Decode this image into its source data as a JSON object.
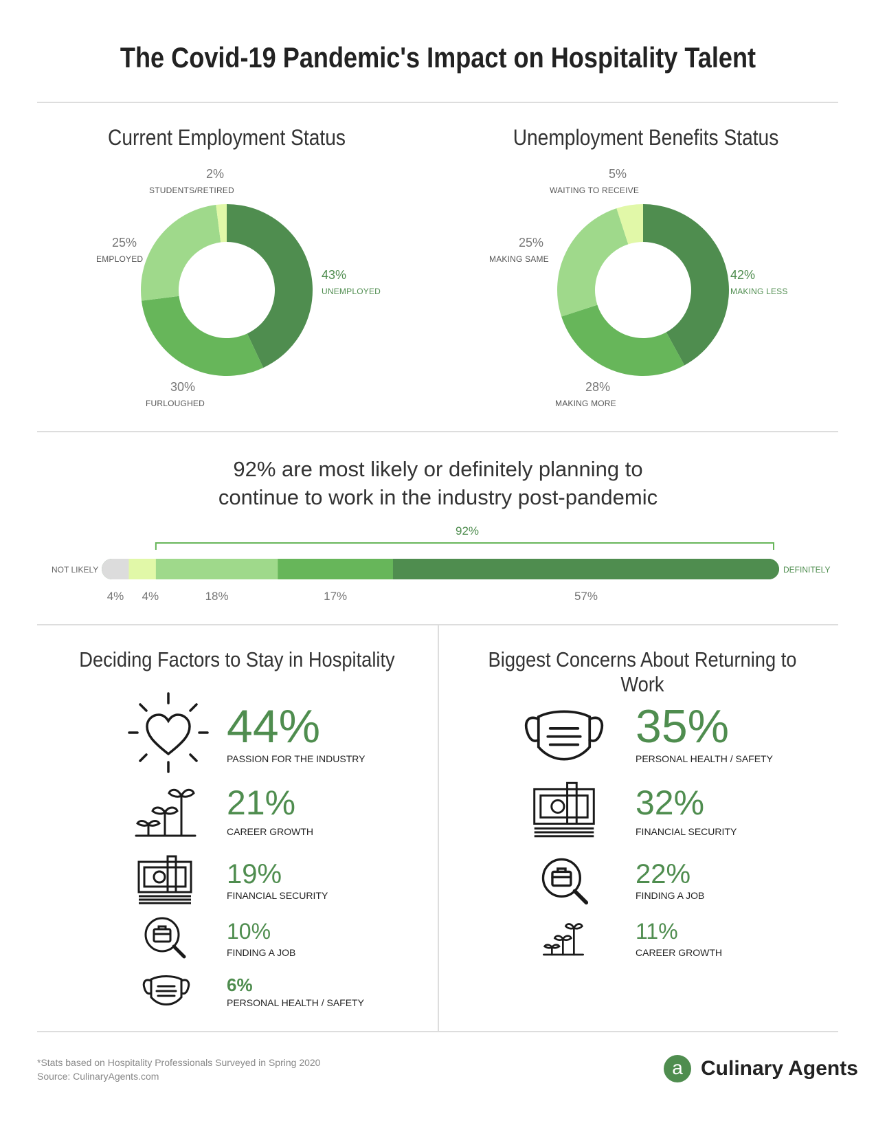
{
  "title": "The Covid-19 Pandemic's Impact on Hospitality Talent",
  "colors": {
    "dark": "#4f8d4f",
    "medium": "#67b65a",
    "light": "#9fd98b",
    "pale": "#e1f8a8",
    "gray": "#dcdcdc"
  },
  "employment": {
    "title": "Current Employment Status",
    "slices": [
      {
        "pct": "43%",
        "label": "UNEMPLOYED"
      },
      {
        "pct": "30%",
        "label": "FURLOUGHED"
      },
      {
        "pct": "25%",
        "label": "EMPLOYED"
      },
      {
        "pct": "2%",
        "label": "STUDENTS/RETIRED"
      }
    ]
  },
  "benefits": {
    "title": "Unemployment Benefits Status",
    "slices": [
      {
        "pct": "42%",
        "label": "MAKING LESS"
      },
      {
        "pct": "28%",
        "label": "MAKING MORE"
      },
      {
        "pct": "25%",
        "label": "MAKING SAME"
      },
      {
        "pct": "5%",
        "label": "WAITING TO RECEIVE"
      }
    ]
  },
  "plans": {
    "headline_1": "92% are most likely or definitely planning to",
    "headline_2": "continue to work in the industry post-pandemic",
    "bracket_label": "92%",
    "left_label": "NOT LIKELY",
    "right_label": "DEFINITELY",
    "segments": [
      {
        "pct": "4%"
      },
      {
        "pct": "4%"
      },
      {
        "pct": "18%"
      },
      {
        "pct": "17%"
      },
      {
        "pct": "57%"
      }
    ]
  },
  "deciding": {
    "title": "Deciding Factors to Stay in Hospitality",
    "items": [
      {
        "pct": "44%",
        "label": "PASSION FOR THE INDUSTRY",
        "icon": "heart-shine-icon"
      },
      {
        "pct": "21%",
        "label": "CAREER GROWTH",
        "icon": "sprouts-icon"
      },
      {
        "pct": "19%",
        "label": "FINANCIAL SECURITY",
        "icon": "money-stack-icon"
      },
      {
        "pct": "10%",
        "label": "FINDING A JOB",
        "icon": "job-search-icon"
      },
      {
        "pct": "6%",
        "label": "PERSONAL HEALTH / SAFETY",
        "icon": "face-mask-icon"
      }
    ]
  },
  "concerns": {
    "title": "Biggest Concerns About Returning to Work",
    "items": [
      {
        "pct": "35%",
        "label": "PERSONAL HEALTH / SAFETY",
        "icon": "face-mask-icon"
      },
      {
        "pct": "32%",
        "label": "FINANCIAL SECURITY",
        "icon": "money-stack-icon"
      },
      {
        "pct": "22%",
        "label": "FINDING A JOB",
        "icon": "job-search-icon"
      },
      {
        "pct": "11%",
        "label": "CAREER GROWTH",
        "icon": "sprouts-icon"
      }
    ]
  },
  "footer": {
    "note": "*Stats based on Hospitality Professionals Surveyed in Spring 2020",
    "source": "Source: CulinaryAgents.com",
    "logo_letter": "a",
    "logo_text": "Culinary Agents"
  },
  "chart_data": [
    {
      "type": "pie",
      "title": "Current Employment Status",
      "categories": [
        "UNEMPLOYED",
        "FURLOUGHED",
        "EMPLOYED",
        "STUDENTS/RETIRED"
      ],
      "values": [
        43,
        30,
        25,
        2
      ]
    },
    {
      "type": "pie",
      "title": "Unemployment Benefits Status",
      "categories": [
        "MAKING LESS",
        "MAKING MORE",
        "MAKING SAME",
        "WAITING TO RECEIVE"
      ],
      "values": [
        42,
        28,
        25,
        5
      ]
    },
    {
      "type": "bar",
      "title": "92% are most likely or definitely planning to continue to work in the industry post-pandemic",
      "values": [
        4,
        4,
        18,
        17,
        57
      ],
      "xlabel": "NOT LIKELY → DEFINITELY"
    },
    {
      "type": "table",
      "title": "Deciding Factors to Stay in Hospitality",
      "categories": [
        "PASSION FOR THE INDUSTRY",
        "CAREER GROWTH",
        "FINANCIAL SECURITY",
        "FINDING A JOB",
        "PERSONAL HEALTH / SAFETY"
      ],
      "values": [
        44,
        21,
        19,
        10,
        6
      ]
    },
    {
      "type": "table",
      "title": "Biggest Concerns About Returning to Work",
      "categories": [
        "PERSONAL HEALTH / SAFETY",
        "FINANCIAL SECURITY",
        "FINDING A JOB",
        "CAREER GROWTH"
      ],
      "values": [
        35,
        32,
        22,
        11
      ]
    }
  ]
}
